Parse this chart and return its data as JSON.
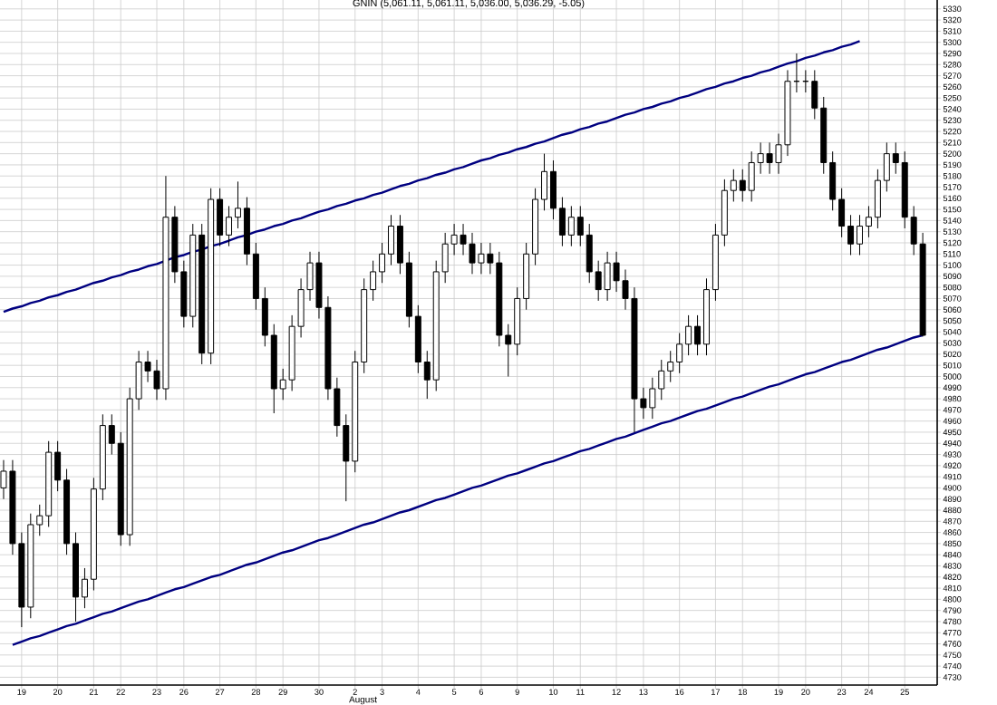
{
  "chart_data": {
    "type": "candlestick",
    "title": "GNIN (5,061.11, 5,061.11, 5,036.00, 5,036.29, -5.05)",
    "color": "#000000",
    "categories": [
      null,
      null,
      "19",
      null,
      null,
      null,
      "20",
      null,
      null,
      null,
      "21",
      null,
      null,
      "22",
      null,
      null,
      null,
      "23",
      null,
      null,
      "26",
      null,
      null,
      null,
      "27",
      null,
      null,
      null,
      "28",
      null,
      null,
      "29",
      null,
      null,
      null,
      "30",
      null,
      null,
      null,
      "2",
      null,
      null,
      "3",
      null,
      null,
      null,
      "4",
      null,
      null,
      null,
      "5",
      null,
      null,
      "6",
      null,
      null,
      null,
      "9",
      null,
      null,
      null,
      "10",
      null,
      null,
      "11",
      null,
      null,
      null,
      "12",
      null,
      null,
      "13",
      null,
      null,
      null,
      "16",
      null,
      null,
      null,
      "17",
      null,
      null,
      "18",
      null,
      null,
      null,
      "19",
      null,
      null,
      "20",
      null,
      null,
      null,
      "23",
      null,
      null,
      "24",
      null,
      null,
      null,
      "25",
      null,
      null
    ],
    "ohlc": [
      [
        4900,
        4925,
        4890,
        4915
      ],
      [
        4915,
        4925,
        4840,
        4850
      ],
      [
        4850,
        4860,
        4775,
        4793
      ],
      [
        4793,
        4877,
        4783,
        4867
      ],
      [
        4867,
        4885,
        4857,
        4875
      ],
      [
        4875,
        4942,
        4865,
        4932
      ],
      [
        4932,
        4942,
        4897,
        4907
      ],
      [
        4907,
        4917,
        4840,
        4850
      ],
      [
        4850,
        4860,
        4780,
        4802
      ],
      [
        4802,
        4828,
        4792,
        4818
      ],
      [
        4818,
        4909,
        4808,
        4899
      ],
      [
        4899,
        4966,
        4889,
        4956
      ],
      [
        4956,
        4966,
        4930,
        4940
      ],
      [
        4940,
        4950,
        4848,
        4858
      ],
      [
        4858,
        4990,
        4848,
        4980
      ],
      [
        4980,
        5023,
        4970,
        5013
      ],
      [
        5013,
        5023,
        4995,
        5005
      ],
      [
        5005,
        5015,
        4979,
        4989
      ],
      [
        4989,
        5180,
        4979,
        5143
      ],
      [
        5143,
        5153,
        5084,
        5094
      ],
      [
        5094,
        5104,
        5044,
        5054
      ],
      [
        5054,
        5137,
        5044,
        5127
      ],
      [
        5127,
        5137,
        5011,
        5021
      ],
      [
        5021,
        5169,
        5011,
        5159
      ],
      [
        5159,
        5169,
        5117,
        5127
      ],
      [
        5127,
        5153,
        5117,
        5143
      ],
      [
        5143,
        5175,
        5133,
        5151
      ],
      [
        5151,
        5161,
        5100,
        5110
      ],
      [
        5110,
        5120,
        5060,
        5070
      ],
      [
        5070,
        5080,
        5027,
        5037
      ],
      [
        5037,
        5047,
        4967,
        4989
      ],
      [
        4989,
        5007,
        4979,
        4997
      ],
      [
        4997,
        5055,
        4987,
        5045
      ],
      [
        5045,
        5088,
        5035,
        5078
      ],
      [
        5078,
        5112,
        5068,
        5102
      ],
      [
        5102,
        5112,
        5052,
        5062
      ],
      [
        5062,
        5072,
        4979,
        4989
      ],
      [
        4989,
        4999,
        4946,
        4956
      ],
      [
        4956,
        4966,
        4888,
        4924
      ],
      [
        4924,
        5023,
        4914,
        5013
      ],
      [
        5013,
        5088,
        5003,
        5078
      ],
      [
        5078,
        5104,
        5068,
        5094
      ],
      [
        5094,
        5120,
        5084,
        5110
      ],
      [
        5110,
        5145,
        5100,
        5135
      ],
      [
        5135,
        5145,
        5092,
        5102
      ],
      [
        5102,
        5112,
        5044,
        5054
      ],
      [
        5054,
        5064,
        5003,
        5013
      ],
      [
        5013,
        5023,
        4980,
        4997
      ],
      [
        4997,
        5104,
        4987,
        5094
      ],
      [
        5094,
        5129,
        5084,
        5119
      ],
      [
        5119,
        5137,
        5109,
        5127
      ],
      [
        5127,
        5137,
        5109,
        5119
      ],
      [
        5119,
        5129,
        5092,
        5102
      ],
      [
        5102,
        5120,
        5092,
        5110
      ],
      [
        5110,
        5120,
        5092,
        5102
      ],
      [
        5102,
        5112,
        5027,
        5037
      ],
      [
        5037,
        5047,
        5000,
        5029
      ],
      [
        5029,
        5080,
        5019,
        5070
      ],
      [
        5070,
        5120,
        5060,
        5110
      ],
      [
        5110,
        5169,
        5100,
        5159
      ],
      [
        5159,
        5200,
        5149,
        5184
      ],
      [
        5184,
        5194,
        5141,
        5151
      ],
      [
        5151,
        5161,
        5117,
        5127
      ],
      [
        5127,
        5153,
        5117,
        5143
      ],
      [
        5143,
        5153,
        5117,
        5127
      ],
      [
        5127,
        5137,
        5084,
        5094
      ],
      [
        5094,
        5104,
        5068,
        5078
      ],
      [
        5078,
        5112,
        5068,
        5102
      ],
      [
        5102,
        5112,
        5076,
        5086
      ],
      [
        5086,
        5096,
        5060,
        5070
      ],
      [
        5070,
        5080,
        4950,
        4980
      ],
      [
        4980,
        4990,
        4962,
        4972
      ],
      [
        4972,
        4999,
        4962,
        4989
      ],
      [
        4989,
        5015,
        4979,
        5005
      ],
      [
        5005,
        5023,
        4995,
        5013
      ],
      [
        5013,
        5039,
        5003,
        5029
      ],
      [
        5029,
        5055,
        5019,
        5045
      ],
      [
        5045,
        5055,
        5019,
        5029
      ],
      [
        5029,
        5088,
        5019,
        5078
      ],
      [
        5078,
        5137,
        5068,
        5127
      ],
      [
        5127,
        5177,
        5117,
        5167
      ],
      [
        5167,
        5186,
        5157,
        5176
      ],
      [
        5176,
        5186,
        5157,
        5167
      ],
      [
        5167,
        5202,
        5157,
        5192
      ],
      [
        5192,
        5210,
        5182,
        5200
      ],
      [
        5200,
        5210,
        5182,
        5192
      ],
      [
        5192,
        5218,
        5182,
        5208
      ],
      [
        5208,
        5275,
        5198,
        5265
      ],
      [
        5265,
        5290,
        5255,
        5265
      ],
      [
        5265,
        5275,
        5255,
        5265
      ],
      [
        5265,
        5275,
        5231,
        5241
      ],
      [
        5241,
        5251,
        5182,
        5192
      ],
      [
        5192,
        5202,
        5149,
        5159
      ],
      [
        5159,
        5169,
        5125,
        5135
      ],
      [
        5135,
        5145,
        5109,
        5119
      ],
      [
        5119,
        5145,
        5109,
        5135
      ],
      [
        5135,
        5153,
        5125,
        5143
      ],
      [
        5143,
        5186,
        5133,
        5176
      ],
      [
        5176,
        5210,
        5166,
        5200
      ],
      [
        5200,
        5210,
        5182,
        5192
      ],
      [
        5192,
        5202,
        5133,
        5143
      ],
      [
        5143,
        5153,
        5109,
        5119
      ],
      [
        5119,
        5129,
        5036,
        5037
      ]
    ],
    "series": [
      {
        "type": "line",
        "color": "#000080",
        "values": [
          5058,
          5061,
          5063,
          5066,
          5068,
          5071,
          5073,
          5076,
          5078,
          5081,
          5084,
          5086,
          5089,
          5091,
          5094,
          5096,
          5099,
          5101,
          5104,
          5107,
          5109,
          5112,
          5114,
          5117,
          5119,
          5122,
          5125,
          5127,
          5130,
          5132,
          5135,
          5137,
          5140,
          5142,
          5145,
          5148,
          5150,
          5153,
          5155,
          5158,
          5160,
          5163,
          5165,
          5168,
          5171,
          5173,
          5176,
          5178,
          5181,
          5183,
          5186,
          5188,
          5191,
          5194,
          5196,
          5199,
          5201,
          5204,
          5206,
          5209,
          5211,
          5214,
          5217,
          5219,
          5222,
          5224,
          5227,
          5229,
          5232,
          5235,
          5237,
          5240,
          5242,
          5245,
          5247,
          5250,
          5252,
          5255,
          5258,
          5260,
          5263,
          5265,
          5268,
          5270,
          5273,
          5275,
          5278,
          5281,
          5283,
          5286,
          5288,
          5291,
          5293,
          5296,
          5298,
          5301,
          null,
          null,
          null,
          null,
          null,
          null,
          null
        ]
      },
      {
        "type": "line",
        "color": "#000080",
        "values": [
          null,
          4759,
          4762,
          4765,
          4767,
          4770,
          4773,
          4776,
          4778,
          4781,
          4784,
          4787,
          4789,
          4792,
          4795,
          4798,
          4800,
          4803,
          4806,
          4809,
          4811,
          4814,
          4817,
          4820,
          4822,
          4825,
          4828,
          4831,
          4833,
          4836,
          4839,
          4842,
          4844,
          4847,
          4850,
          4853,
          4855,
          4858,
          4861,
          4864,
          4867,
          4869,
          4872,
          4875,
          4878,
          4880,
          4883,
          4886,
          4889,
          4891,
          4894,
          4897,
          4900,
          4902,
          4905,
          4908,
          4911,
          4913,
          4916,
          4919,
          4922,
          4924,
          4927,
          4930,
          4933,
          4935,
          4938,
          4941,
          4944,
          4946,
          4949,
          4952,
          4955,
          4958,
          4960,
          4963,
          4966,
          4969,
          4971,
          4974,
          4977,
          4980,
          4982,
          4985,
          4988,
          4991,
          4993,
          4996,
          4999,
          5002,
          5004,
          5007,
          5010,
          5013,
          5015,
          5018,
          5021,
          5024,
          5026,
          5029,
          5032,
          5035,
          5037
        ]
      }
    ],
    "ylim": [
      4723,
      5338
    ],
    "yticks": [
      4730,
      4740,
      4750,
      4760,
      4770,
      4780,
      4790,
      4800,
      4810,
      4820,
      4830,
      4840,
      4850,
      4860,
      4870,
      4880,
      4890,
      4900,
      4910,
      4920,
      4930,
      4940,
      4950,
      4960,
      4970,
      4980,
      4990,
      5000,
      5010,
      5020,
      5030,
      5040,
      5050,
      5060,
      5070,
      5080,
      5090,
      5100,
      5110,
      5120,
      5130,
      5140,
      5150,
      5160,
      5170,
      5180,
      5190,
      5200,
      5210,
      5220,
      5230,
      5240,
      5250,
      5260,
      5270,
      5280,
      5290,
      5300,
      5310,
      5320,
      5330
    ],
    "annotations": [
      "August"
    ],
    "grid": true
  }
}
